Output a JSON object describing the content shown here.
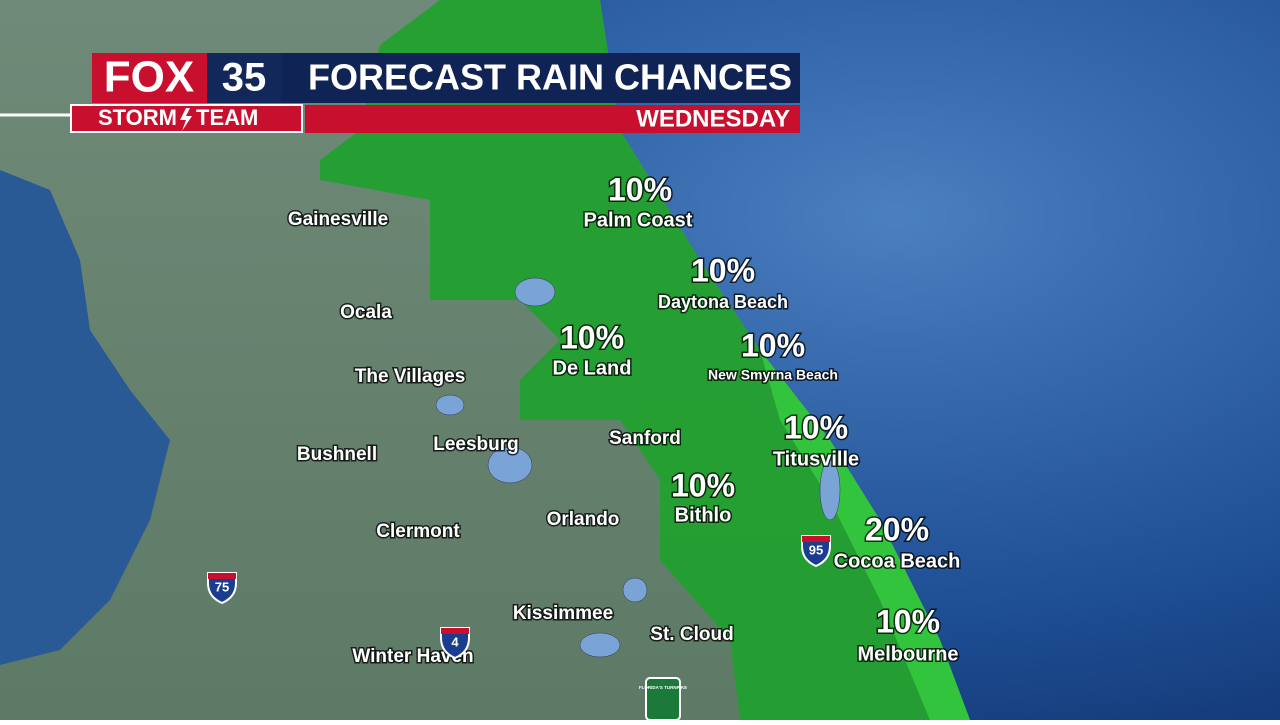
{
  "header": {
    "logo": "FOX",
    "channel": "35",
    "team_left": "STORM",
    "team_right": "TEAM",
    "title": "FORECAST RAIN CHANCES",
    "day": "WEDNESDAY"
  },
  "forecasts": [
    {
      "city": "Palm Coast",
      "chance": "10%"
    },
    {
      "city": "Daytona Beach",
      "chance": "10%"
    },
    {
      "city": "De Land",
      "chance": "10%"
    },
    {
      "city": "New Smyrna Beach",
      "chance": "10%"
    },
    {
      "city": "Titusville",
      "chance": "10%"
    },
    {
      "city": "Bithlo",
      "chance": "10%"
    },
    {
      "city": "Cocoa Beach",
      "chance": "20%"
    },
    {
      "city": "Melbourne",
      "chance": "10%"
    }
  ],
  "cities": [
    "Gainesville",
    "Ocala",
    "The Villages",
    "Leesburg",
    "Bushnell",
    "Clermont",
    "Orlando",
    "Sanford",
    "Kissimmee",
    "St. Cloud",
    "Winter Haven"
  ],
  "shields": [
    "75",
    "4",
    "95"
  ],
  "turnpike": "FLORIDA'S TURNPIKE"
}
